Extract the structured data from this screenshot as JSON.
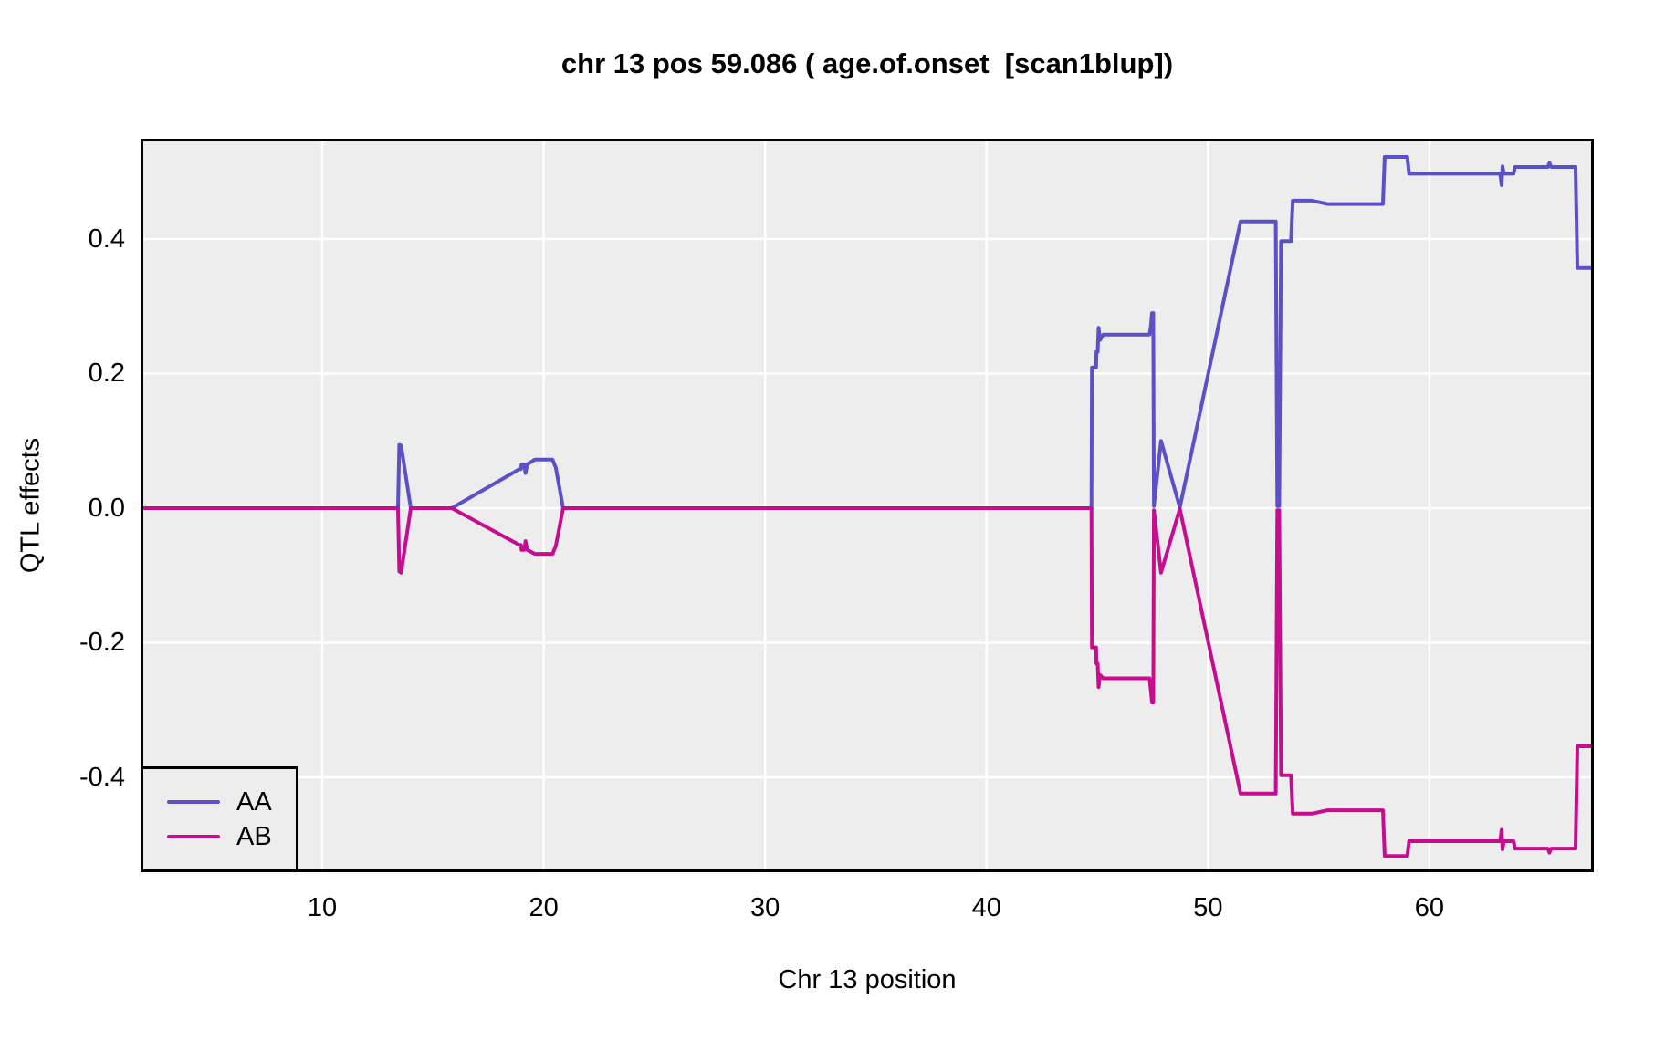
{
  "chart_data": {
    "type": "line",
    "title": "chr 13 pos 59.086 ( age.of.onset  [scan1blup])",
    "xlabel": "Chr 13 position",
    "ylabel": "QTL effects",
    "xlim": [
      1.92,
      67.3
    ],
    "ylim": [
      -0.537,
      0.545
    ],
    "x_ticks": [
      10,
      20,
      30,
      40,
      50,
      60
    ],
    "y_ticks": [
      -0.4,
      -0.2,
      0.0,
      0.2,
      0.4
    ],
    "grid": true,
    "legend_position": "bottom-left",
    "colors": {
      "panel_bg": "#EEEDEE",
      "grid": "#FFFFFF",
      "border": "#000000",
      "aa_line": "#5C50C6",
      "ab_line": "#C60D8F"
    },
    "series": [
      {
        "name": "AA",
        "color": "#5C50C6",
        "points": [
          [
            1.92,
            0
          ],
          [
            13.42,
            0
          ],
          [
            13.48,
            0.094
          ],
          [
            13.56,
            0.093
          ],
          [
            14.0,
            0
          ],
          [
            15.85,
            0
          ],
          [
            18.86,
            0.057
          ],
          [
            18.98,
            0.058
          ],
          [
            19.0,
            0.065
          ],
          [
            19.12,
            0.065
          ],
          [
            19.18,
            0.052
          ],
          [
            19.26,
            0.065
          ],
          [
            19.6,
            0.072
          ],
          [
            20.4,
            0.072
          ],
          [
            20.55,
            0.06
          ],
          [
            20.88,
            0
          ],
          [
            44.74,
            0
          ],
          [
            44.76,
            0.209
          ],
          [
            44.95,
            0.209
          ],
          [
            44.96,
            0.232
          ],
          [
            45.02,
            0.232
          ],
          [
            45.06,
            0.268
          ],
          [
            45.13,
            0.25
          ],
          [
            45.27,
            0.258
          ],
          [
            47.36,
            0.258
          ],
          [
            47.42,
            0.269
          ],
          [
            47.47,
            0.29
          ],
          [
            47.53,
            0.29
          ],
          [
            47.56,
            0.003
          ],
          [
            47.88,
            0.1
          ],
          [
            48.73,
            0.001
          ],
          [
            51.47,
            0.426
          ],
          [
            53.06,
            0.426
          ],
          [
            53.13,
            0.003
          ],
          [
            53.22,
            0.003
          ],
          [
            53.3,
            0.397
          ],
          [
            53.75,
            0.397
          ],
          [
            53.83,
            0.457
          ],
          [
            54.7,
            0.457
          ],
          [
            55.4,
            0.452
          ],
          [
            57.9,
            0.452
          ],
          [
            57.98,
            0.522
          ],
          [
            59.0,
            0.522
          ],
          [
            59.08,
            0.497
          ],
          [
            63.2,
            0.497
          ],
          [
            63.26,
            0.48
          ],
          [
            63.3,
            0.508
          ],
          [
            63.36,
            0.497
          ],
          [
            63.8,
            0.497
          ],
          [
            63.86,
            0.507
          ],
          [
            65.35,
            0.507
          ],
          [
            65.42,
            0.513
          ],
          [
            65.5,
            0.507
          ],
          [
            66.6,
            0.507
          ],
          [
            66.68,
            0.357
          ],
          [
            67.3,
            0.357
          ]
        ]
      },
      {
        "name": "AB",
        "color": "#C60D8F",
        "points": [
          [
            1.92,
            0
          ],
          [
            13.42,
            0
          ],
          [
            13.48,
            -0.094
          ],
          [
            13.56,
            -0.096
          ],
          [
            14.0,
            0
          ],
          [
            15.85,
            0
          ],
          [
            18.86,
            -0.054
          ],
          [
            18.98,
            -0.055
          ],
          [
            19.0,
            -0.062
          ],
          [
            19.12,
            -0.062
          ],
          [
            19.18,
            -0.049
          ],
          [
            19.26,
            -0.062
          ],
          [
            19.6,
            -0.068
          ],
          [
            20.4,
            -0.068
          ],
          [
            20.55,
            -0.056
          ],
          [
            20.88,
            0
          ],
          [
            44.74,
            0
          ],
          [
            44.76,
            -0.207
          ],
          [
            44.95,
            -0.207
          ],
          [
            44.96,
            -0.231
          ],
          [
            45.02,
            -0.231
          ],
          [
            45.06,
            -0.266
          ],
          [
            45.13,
            -0.248
          ],
          [
            45.27,
            -0.253
          ],
          [
            47.36,
            -0.253
          ],
          [
            47.42,
            -0.27
          ],
          [
            47.47,
            -0.289
          ],
          [
            47.53,
            -0.289
          ],
          [
            47.56,
            -0.003
          ],
          [
            47.88,
            -0.096
          ],
          [
            48.73,
            -0.001
          ],
          [
            51.47,
            -0.424
          ],
          [
            53.06,
            -0.424
          ],
          [
            53.13,
            -0.003
          ],
          [
            53.22,
            -0.003
          ],
          [
            53.3,
            -0.397
          ],
          [
            53.75,
            -0.397
          ],
          [
            53.83,
            -0.454
          ],
          [
            54.7,
            -0.454
          ],
          [
            55.4,
            -0.449
          ],
          [
            57.9,
            -0.449
          ],
          [
            57.98,
            -0.517
          ],
          [
            59.0,
            -0.517
          ],
          [
            59.08,
            -0.495
          ],
          [
            63.2,
            -0.495
          ],
          [
            63.26,
            -0.478
          ],
          [
            63.3,
            -0.507
          ],
          [
            63.36,
            -0.495
          ],
          [
            63.8,
            -0.495
          ],
          [
            63.86,
            -0.506
          ],
          [
            65.35,
            -0.506
          ],
          [
            65.42,
            -0.512
          ],
          [
            65.5,
            -0.506
          ],
          [
            66.6,
            -0.506
          ],
          [
            66.68,
            -0.354
          ],
          [
            67.3,
            -0.354
          ]
        ]
      }
    ]
  }
}
